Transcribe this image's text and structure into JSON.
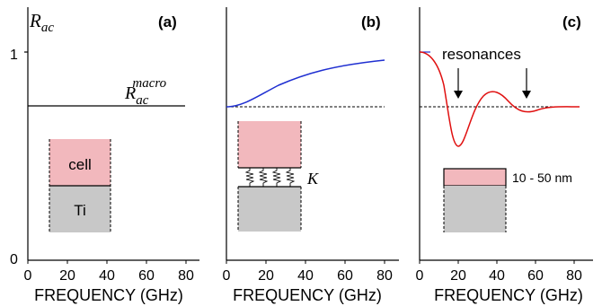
{
  "colors": {
    "cell": "#f2b8bd",
    "ti": "#c8c8c8",
    "curve_b": "#1f2fd1",
    "curve_c": "#e01010",
    "line": "#000000",
    "background": "#ffffff"
  },
  "axes": {
    "y_title_main": "R",
    "y_title_sub": "ac",
    "y_tick_top": "1",
    "y_tick_bottom": "0",
    "x_title": "FREQUENCY (GHz)",
    "x_ticks": [
      "0",
      "20",
      "40",
      "60",
      "80"
    ]
  },
  "panels": [
    {
      "label": "(a)",
      "macro_main": "R",
      "macro_sub": "ac",
      "macro_sup": "macro",
      "box_top_label": "cell",
      "box_bottom_label": "Ti"
    },
    {
      "label": "(b)",
      "spring_label": "K"
    },
    {
      "label": "(c)",
      "resonance_label": "resonances",
      "thickness_label": "10 - 50 nm"
    }
  ]
}
